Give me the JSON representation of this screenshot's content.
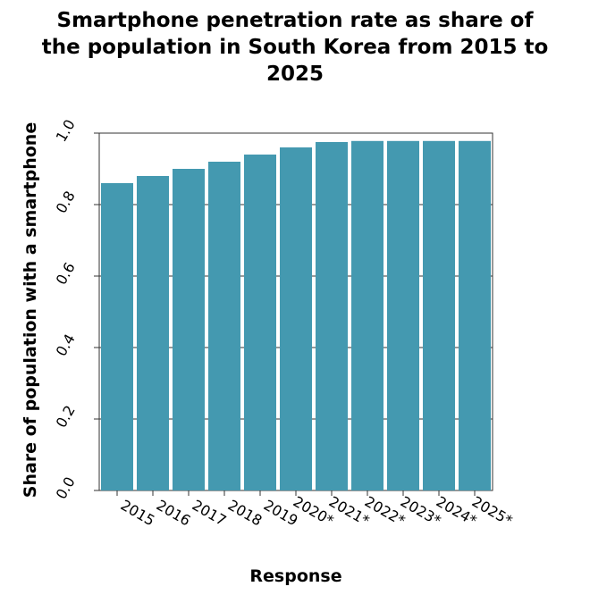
{
  "chart_data": {
    "type": "bar",
    "title_lines": [
      "Smartphone penetration rate as share of",
      "the population in South Korea from 2015 to",
      "2025"
    ],
    "xlabel": "Response",
    "ylabel": "Share of population with a smartphone",
    "categories": [
      "2015",
      "2016",
      "2017",
      "2018",
      "2019",
      "2020*",
      "2021*",
      "2022*",
      "2023*",
      "2024*",
      "2025*"
    ],
    "values": [
      0.86,
      0.88,
      0.9,
      0.92,
      0.94,
      0.96,
      0.975,
      0.978,
      0.978,
      0.978,
      0.978
    ],
    "ylim": [
      0,
      1.0
    ],
    "yticks": [
      "0.0",
      "0.2",
      "0.4",
      "0.6",
      "0.8",
      "1.0"
    ],
    "grid": true,
    "bar_color": "#4499b0",
    "grid_color": "#333333"
  }
}
